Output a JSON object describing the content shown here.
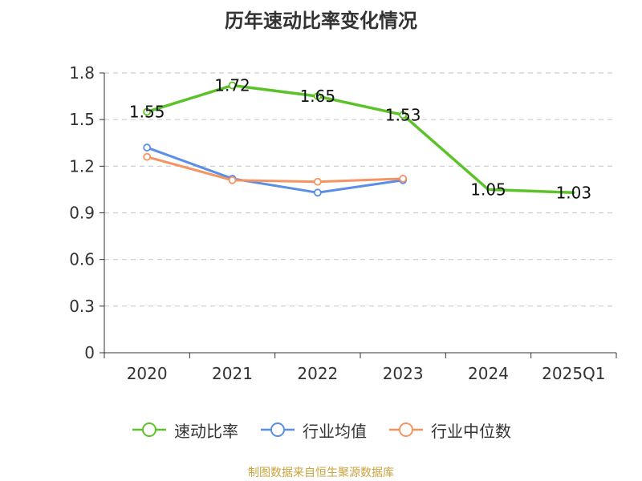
{
  "title": "历年速动比率变化情况",
  "source": "制图数据来自恒生聚源数据库",
  "colors": {
    "source_text": "#c9a33b",
    "axis": "#333333",
    "grid": "#cccccc"
  },
  "chart_data": {
    "type": "line",
    "title": "历年速动比率变化情况",
    "xlabel": "",
    "ylabel": "",
    "categories": [
      "2020",
      "2021",
      "2022",
      "2023",
      "2024",
      "2025Q1"
    ],
    "ylim": [
      0,
      1.8
    ],
    "yticks": [
      0,
      0.3,
      0.6,
      0.9,
      1.2,
      1.5,
      1.8
    ],
    "ytick_labels": [
      "0",
      "0.3",
      "0.6",
      "0.9",
      "1.2",
      "1.5",
      "1.8"
    ],
    "grid": true,
    "grid_style": "dashed",
    "legend_position": "bottom",
    "series": [
      {
        "name": "速动比率",
        "color": "#5dc22a",
        "values": [
          1.55,
          1.72,
          1.65,
          1.53,
          1.05,
          1.03
        ],
        "labels": [
          "1.55",
          "1.72",
          "1.65",
          "1.53",
          "1.05",
          "1.03"
        ],
        "show_labels": true,
        "show_markers_at": [
          0,
          1,
          2,
          3
        ]
      },
      {
        "name": "行业均值",
        "color": "#5b8ee6",
        "values": [
          1.32,
          1.12,
          1.03,
          1.11,
          null,
          null
        ],
        "show_labels": false
      },
      {
        "name": "行业中位数",
        "color": "#f59361",
        "values": [
          1.26,
          1.11,
          1.1,
          1.12,
          null,
          null
        ],
        "show_labels": false
      }
    ]
  }
}
